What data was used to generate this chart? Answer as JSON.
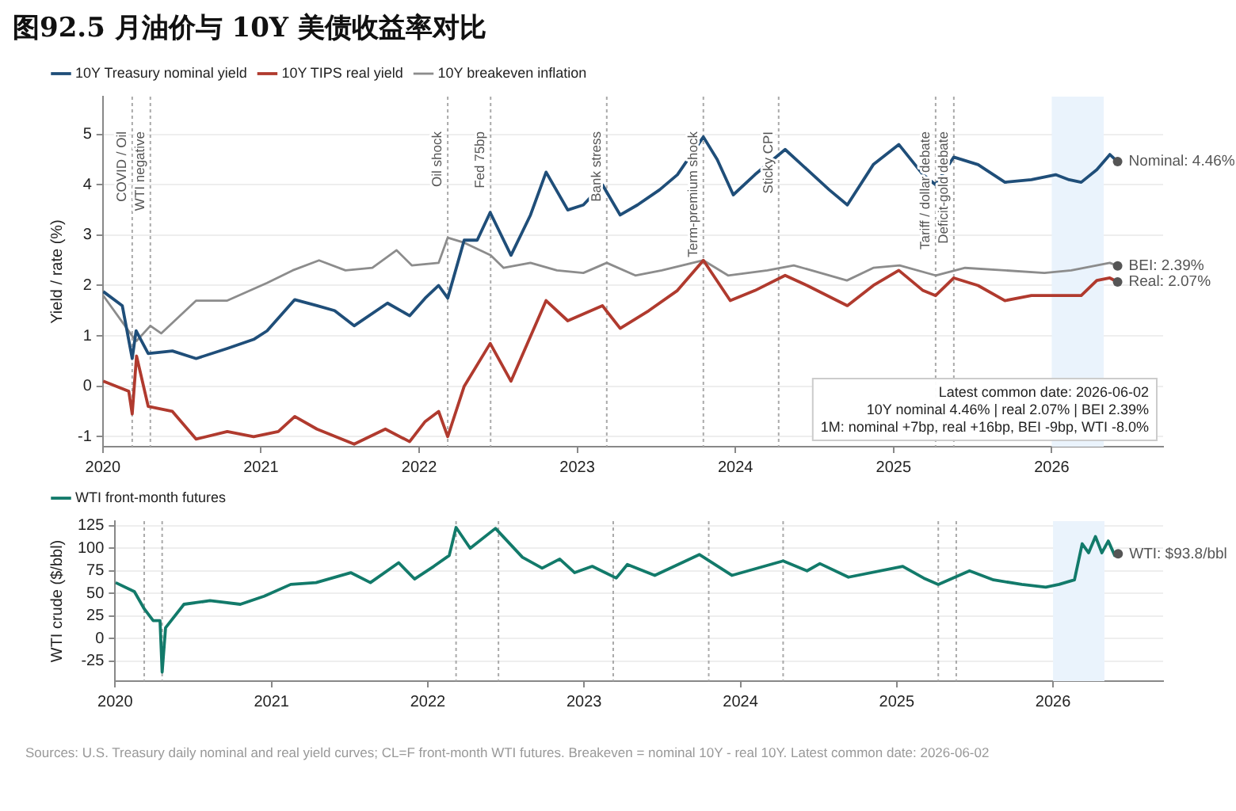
{
  "chart_data": [
    {
      "type": "line",
      "title": "图92.5 月油价与 10Y 美债收益率对比",
      "ylabel": "Yield / rate (%)",
      "xlim": [
        "2020-01-01",
        "2026-09-15"
      ],
      "xticks": [
        "2020",
        "2021",
        "2022",
        "2023",
        "2024",
        "2025",
        "2026"
      ],
      "ylim": [
        -1.2,
        5.75
      ],
      "yticks": [
        -1,
        0,
        1,
        2,
        3,
        4,
        5
      ],
      "grid": "y",
      "legend": "top left",
      "marker": "none",
      "line_style": "solid",
      "series": [
        {
          "name": "10Y Treasury nominal yield",
          "color": "#1f4e79",
          "x": [
            "2020-01-02",
            "2020-02-15",
            "2020-03-09",
            "2020-03-18",
            "2020-04-15",
            "2020-06-10",
            "2020-08-04",
            "2020-10-15",
            "2020-12-15",
            "2021-01-15",
            "2021-03-20",
            "2021-05-10",
            "2021-06-20",
            "2021-08-04",
            "2021-10-20",
            "2021-12-10",
            "2022-01-15",
            "2022-02-15",
            "2022-03-08",
            "2022-04-15",
            "2022-05-15",
            "2022-06-14",
            "2022-08-01",
            "2022-09-15",
            "2022-10-21",
            "2022-12-10",
            "2023-01-15",
            "2023-02-28",
            "2023-04-10",
            "2023-05-20",
            "2023-07-10",
            "2023-08-20",
            "2023-10-19",
            "2023-11-20",
            "2023-12-27",
            "2024-02-15",
            "2024-04-25",
            "2024-06-15",
            "2024-08-05",
            "2024-09-16",
            "2024-11-15",
            "2025-01-13",
            "2025-03-10",
            "2025-04-08",
            "2025-05-20",
            "2025-07-15",
            "2025-09-15",
            "2025-11-15",
            "2026-01-10",
            "2026-02-10",
            "2026-03-10",
            "2026-04-15",
            "2026-05-15",
            "2026-06-02"
          ],
          "values": [
            1.88,
            1.6,
            0.55,
            1.1,
            0.65,
            0.7,
            0.55,
            0.75,
            0.93,
            1.1,
            1.72,
            1.6,
            1.5,
            1.2,
            1.65,
            1.4,
            1.75,
            2.0,
            1.75,
            2.9,
            2.9,
            3.45,
            2.6,
            3.4,
            4.25,
            3.5,
            3.6,
            4.0,
            3.4,
            3.6,
            3.9,
            4.2,
            4.95,
            4.5,
            3.8,
            4.2,
            4.7,
            4.3,
            3.9,
            3.6,
            4.4,
            4.8,
            4.2,
            4.0,
            4.55,
            4.4,
            4.05,
            4.1,
            4.2,
            4.1,
            4.05,
            4.3,
            4.6,
            4.46
          ]
        },
        {
          "name": "10Y TIPS real yield",
          "color": "#b03a2e",
          "x": [
            "2020-01-02",
            "2020-03-01",
            "2020-03-09",
            "2020-03-19",
            "2020-04-15",
            "2020-06-10",
            "2020-08-04",
            "2020-10-15",
            "2020-12-15",
            "2021-02-10",
            "2021-03-20",
            "2021-05-10",
            "2021-08-04",
            "2021-10-15",
            "2021-12-10",
            "2022-01-15",
            "2022-02-15",
            "2022-03-08",
            "2022-04-15",
            "2022-06-14",
            "2022-08-01",
            "2022-10-21",
            "2022-12-10",
            "2023-02-28",
            "2023-04-10",
            "2023-06-15",
            "2023-08-20",
            "2023-10-19",
            "2023-12-20",
            "2024-02-15",
            "2024-04-25",
            "2024-06-15",
            "2024-09-16",
            "2024-11-15",
            "2025-01-13",
            "2025-03-10",
            "2025-04-08",
            "2025-05-20",
            "2025-07-15",
            "2025-09-15",
            "2025-11-15",
            "2026-01-10",
            "2026-03-10",
            "2026-04-15",
            "2026-05-15",
            "2026-06-02"
          ],
          "values": [
            0.1,
            -0.1,
            -0.55,
            0.6,
            -0.4,
            -0.5,
            -1.05,
            -0.9,
            -1.0,
            -0.9,
            -0.6,
            -0.85,
            -1.15,
            -0.85,
            -1.1,
            -0.7,
            -0.5,
            -1.0,
            0.0,
            0.85,
            0.1,
            1.7,
            1.3,
            1.6,
            1.15,
            1.5,
            1.9,
            2.5,
            1.7,
            1.9,
            2.2,
            2.0,
            1.6,
            2.0,
            2.3,
            1.9,
            1.8,
            2.15,
            2.0,
            1.7,
            1.8,
            1.8,
            1.8,
            2.1,
            2.15,
            2.07
          ]
        },
        {
          "name": "10Y breakeven inflation",
          "color": "#8c8c8c",
          "x": [
            "2020-01-02",
            "2020-03-09",
            "2020-03-19",
            "2020-04-20",
            "2020-05-15",
            "2020-08-04",
            "2020-10-15",
            "2021-01-15",
            "2021-03-15",
            "2021-05-15",
            "2021-07-15",
            "2021-09-15",
            "2021-11-10",
            "2021-12-15",
            "2022-02-15",
            "2022-03-08",
            "2022-04-15",
            "2022-06-15",
            "2022-07-15",
            "2022-09-15",
            "2022-11-15",
            "2023-01-15",
            "2023-03-10",
            "2023-05-15",
            "2023-07-15",
            "2023-10-19",
            "2023-12-15",
            "2024-03-15",
            "2024-05-15",
            "2024-09-15",
            "2024-11-15",
            "2025-01-15",
            "2025-04-08",
            "2025-06-15",
            "2025-09-15",
            "2025-12-15",
            "2026-02-15",
            "2026-05-15",
            "2026-06-02"
          ],
          "values": [
            1.8,
            1.0,
            0.9,
            1.2,
            1.05,
            1.7,
            1.7,
            2.05,
            2.3,
            2.5,
            2.3,
            2.35,
            2.7,
            2.4,
            2.45,
            2.95,
            2.85,
            2.6,
            2.35,
            2.45,
            2.3,
            2.25,
            2.45,
            2.2,
            2.3,
            2.5,
            2.2,
            2.3,
            2.4,
            2.1,
            2.35,
            2.4,
            2.2,
            2.35,
            2.3,
            2.25,
            2.3,
            2.45,
            2.39
          ]
        }
      ],
      "ref_lines": [
        {
          "axis": "x",
          "value": "2020-03-09",
          "label": "COVID / Oil"
        },
        {
          "axis": "x",
          "value": "2020-04-20",
          "label": "WTI negative"
        },
        {
          "axis": "x",
          "value": "2022-03-08",
          "label": "Oil shock"
        },
        {
          "axis": "x",
          "value": "2022-06-15",
          "label": "Fed 75bp"
        },
        {
          "axis": "x",
          "value": "2023-03-10",
          "label": "Bank stress"
        },
        {
          "axis": "x",
          "value": "2023-10-19",
          "label": "Term-premium shock"
        },
        {
          "axis": "x",
          "value": "2024-04-10",
          "label": "Sticky CPI"
        },
        {
          "axis": "x",
          "value": "2025-04-08",
          "label": "Tariff / dollar debate"
        },
        {
          "axis": "x",
          "value": "2025-05-20",
          "label": "Deficit-gold debate"
        }
      ],
      "bands": [
        {
          "axis": "x",
          "from": "2026-01-01",
          "to": "2026-05-01",
          "color": "#eaf3fc"
        }
      ],
      "annotations": [
        {
          "text": "Nominal: 4.46%",
          "x": "2026-06-02",
          "y": 4.46
        },
        {
          "text": "BEI: 2.39%",
          "x": "2026-06-02",
          "y": 2.39
        },
        {
          "text": "Real: 2.07%",
          "x": "2026-06-02",
          "y": 2.07
        },
        "Latest common date: 2026-06-02",
        "10Y nominal 4.46% | real 2.07% | BEI 2.39%",
        "1M: nominal +7bp, real +16bp, BEI -9bp, WTI -8.0%"
      ]
    },
    {
      "type": "line",
      "ylabel": "WTI crude ($/bbl)",
      "xlim": [
        "2020-01-01",
        "2026-09-15"
      ],
      "xticks": [
        "2020",
        "2021",
        "2022",
        "2023",
        "2024",
        "2025",
        "2026"
      ],
      "ylim": [
        -47,
        130
      ],
      "yticks": [
        -25,
        0,
        25,
        50,
        75,
        100,
        125
      ],
      "grid": "y",
      "legend": "top left",
      "marker": "none",
      "line_style": "solid",
      "series": [
        {
          "name": "WTI front-month futures",
          "color": "#127a6a",
          "x": [
            "2020-01-02",
            "2020-02-15",
            "2020-03-09",
            "2020-03-30",
            "2020-04-15",
            "2020-04-20",
            "2020-04-28",
            "2020-06-10",
            "2020-08-10",
            "2020-10-20",
            "2020-12-15",
            "2021-02-15",
            "2021-04-15",
            "2021-07-05",
            "2021-08-20",
            "2021-10-25",
            "2021-12-01",
            "2022-01-15",
            "2022-02-20",
            "2022-03-08",
            "2022-04-10",
            "2022-06-08",
            "2022-08-10",
            "2022-09-25",
            "2022-11-05",
            "2022-12-10",
            "2023-01-20",
            "2023-03-17",
            "2023-04-12",
            "2023-06-15",
            "2023-09-27",
            "2023-12-12",
            "2024-04-10",
            "2024-06-05",
            "2024-07-05",
            "2024-09-10",
            "2025-01-15",
            "2025-03-05",
            "2025-04-08",
            "2025-06-20",
            "2025-08-15",
            "2025-10-20",
            "2025-12-15",
            "2026-01-15",
            "2026-02-20",
            "2026-03-10",
            "2026-03-25",
            "2026-04-10",
            "2026-04-25",
            "2026-05-10",
            "2026-05-25",
            "2026-06-02"
          ],
          "values": [
            62,
            52,
            33,
            20,
            20,
            -37,
            12,
            38,
            42,
            38,
            47,
            60,
            62,
            73,
            62,
            84,
            66,
            80,
            92,
            123,
            100,
            122,
            90,
            78,
            88,
            73,
            80,
            67,
            82,
            70,
            93,
            70,
            86,
            75,
            83,
            68,
            80,
            67,
            60,
            75,
            65,
            60,
            57,
            60,
            65,
            105,
            95,
            113,
            95,
            108,
            92,
            93.8
          ]
        }
      ],
      "ref_lines": [
        {
          "axis": "x",
          "value": "2020-03-09"
        },
        {
          "axis": "x",
          "value": "2020-04-20"
        },
        {
          "axis": "x",
          "value": "2022-03-08"
        },
        {
          "axis": "x",
          "value": "2022-06-15"
        },
        {
          "axis": "x",
          "value": "2023-03-10"
        },
        {
          "axis": "x",
          "value": "2023-10-19"
        },
        {
          "axis": "x",
          "value": "2024-04-10"
        },
        {
          "axis": "x",
          "value": "2025-04-08"
        },
        {
          "axis": "x",
          "value": "2025-05-20"
        }
      ],
      "bands": [
        {
          "axis": "x",
          "from": "2026-01-01",
          "to": "2026-05-01",
          "color": "#eaf3fc"
        }
      ],
      "annotations": [
        {
          "text": "WTI: $93.8/bbl",
          "x": "2026-06-02",
          "y": 93.8
        },
        "Sources: U.S. Treasury daily nominal and real yield curves; CL=F front-month WTI futures. Breakeven = nominal 10Y - real 10Y. Latest common date: 2026-06-02"
      ]
    }
  ]
}
